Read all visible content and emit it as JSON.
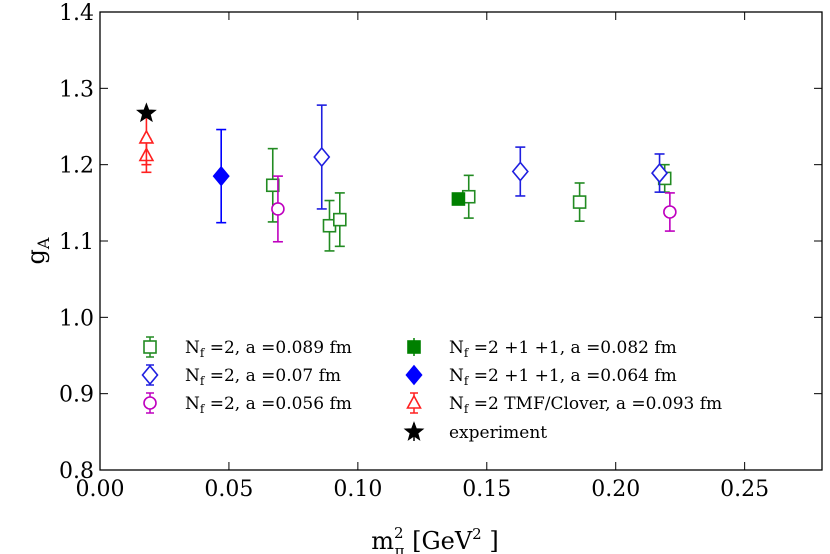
{
  "chart_data": {
    "type": "scatter",
    "title": "",
    "xlabel": "m_π² [GeV²]",
    "ylabel": "g_A",
    "xlim": [
      0.0,
      0.28
    ],
    "ylim": [
      0.8,
      1.4
    ],
    "xticks": [
      0.0,
      0.05,
      0.1,
      0.15,
      0.2,
      0.25
    ],
    "xtick_labels": [
      "0.00",
      "0.05",
      "0.10",
      "0.15",
      "0.20",
      "0.25"
    ],
    "yticks": [
      0.8,
      0.9,
      1.0,
      1.1,
      1.2,
      1.3,
      1.4
    ],
    "ytick_labels": [
      "0.8",
      "0.9",
      "1.0",
      "1.1",
      "1.2",
      "1.3",
      "1.4"
    ],
    "grid": false,
    "legend_position": "lower-center",
    "series": [
      {
        "name": "Nf=2, a=0.089 fm",
        "color": "#228B22",
        "marker": "square-open",
        "points": [
          {
            "x": 0.067,
            "y": 1.173,
            "err": 0.048
          },
          {
            "x": 0.089,
            "y": 1.12,
            "err": 0.033
          },
          {
            "x": 0.093,
            "y": 1.128,
            "err": 0.035
          },
          {
            "x": 0.143,
            "y": 1.158,
            "err": 0.028
          },
          {
            "x": 0.186,
            "y": 1.151,
            "err": 0.025
          },
          {
            "x": 0.219,
            "y": 1.182,
            "err": 0.018
          }
        ]
      },
      {
        "name": "Nf=2, a=0.07 fm",
        "color": "#1f1fe0",
        "marker": "diamond-open",
        "points": [
          {
            "x": 0.086,
            "y": 1.21,
            "err": 0.068
          },
          {
            "x": 0.163,
            "y": 1.191,
            "err": 0.032
          },
          {
            "x": 0.217,
            "y": 1.189,
            "err": 0.025
          }
        ]
      },
      {
        "name": "Nf=2, a=0.056 fm",
        "color": "#bf00bf",
        "marker": "circle-open",
        "points": [
          {
            "x": 0.069,
            "y": 1.142,
            "err": 0.043
          },
          {
            "x": 0.221,
            "y": 1.138,
            "err": 0.025
          }
        ]
      },
      {
        "name": "Nf=2+1+1, a=0.082 fm",
        "color": "#008000",
        "marker": "square-filled",
        "points": [
          {
            "x": 0.139,
            "y": 1.155,
            "err": 0.0
          }
        ]
      },
      {
        "name": "Nf=2+1+1, a=0.064 fm",
        "color": "#0000ff",
        "marker": "diamond-filled",
        "points": [
          {
            "x": 0.047,
            "y": 1.185,
            "err": 0.061
          }
        ]
      },
      {
        "name": "Nf=2 TMF/Clover, a=0.093 fm",
        "color": "#ff2020",
        "marker": "triangle-open",
        "points": [
          {
            "x": 0.018,
            "y": 1.212,
            "err": 0.022
          },
          {
            "x": 0.018,
            "y": 1.235,
            "err": 0.035
          }
        ]
      },
      {
        "name": "experiment",
        "color": "#000000",
        "marker": "star-filled",
        "points": [
          {
            "x": 0.018,
            "y": 1.2673,
            "err": 0.0
          }
        ]
      }
    ],
    "legend": [
      {
        "series": 0,
        "nf_base": "N",
        "nf_sub": "f",
        "nf_rest": " =2,  a =0.089 fm"
      },
      {
        "series": 1,
        "nf_base": "N",
        "nf_sub": "f",
        "nf_rest": " =2,  a =0.07 fm"
      },
      {
        "series": 2,
        "nf_base": "N",
        "nf_sub": "f",
        "nf_rest": " =2,  a =0.056 fm"
      },
      {
        "series": 3,
        "nf_base": "N",
        "nf_sub": "f",
        "nf_rest": " =2 +1 +1,   a =0.082 fm"
      },
      {
        "series": 4,
        "nf_base": "N",
        "nf_sub": "f",
        "nf_rest": " =2 +1 +1,   a =0.064 fm"
      },
      {
        "series": 5,
        "nf_base": "N",
        "nf_sub": "f",
        "nf_rest": " =2 TMF/Clover,  a =0.093 fm"
      },
      {
        "series": 6,
        "nf_base": "",
        "nf_sub": "",
        "nf_rest": "experiment"
      }
    ],
    "axis_text": {
      "y_base": "g",
      "y_sub": "A",
      "x_base": "m",
      "x_sup": "2",
      "x_sub": "π",
      "x_unit_open": " [GeV",
      "x_unit_sup": "2",
      "x_unit_close": " ]"
    }
  }
}
